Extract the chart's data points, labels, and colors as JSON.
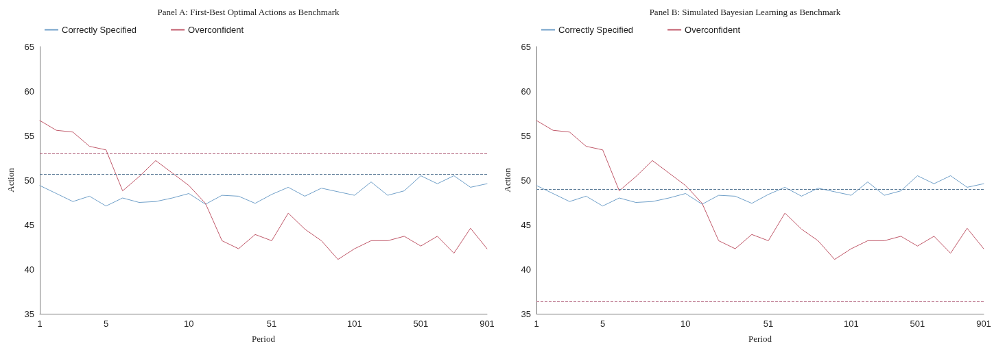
{
  "chart_data": [
    {
      "type": "line",
      "title": "Panel A: First-Best Optimal Actions as Benchmark",
      "xlabel": "Period",
      "ylabel": "Action",
      "categories": [
        "1",
        null,
        null,
        null,
        "5",
        null,
        null,
        null,
        null,
        "10",
        null,
        null,
        null,
        null,
        "51",
        null,
        null,
        null,
        null,
        "101",
        null,
        null,
        null,
        "501",
        null,
        null,
        null,
        "901"
      ],
      "series": [
        {
          "name": "Correctly Specified",
          "color": "#6f9fc8",
          "values": [
            49.4,
            48.5,
            47.6,
            48.2,
            47.1,
            48.0,
            47.5,
            47.6,
            48.0,
            48.5,
            47.3,
            48.3,
            48.2,
            47.4,
            48.4,
            49.2,
            48.2,
            49.1,
            48.7,
            48.3,
            49.8,
            48.3,
            48.8,
            50.5,
            49.6,
            50.5,
            49.2,
            49.6
          ]
        },
        {
          "name": "Overconfident",
          "color": "#c0596a",
          "values": [
            56.7,
            55.6,
            55.4,
            53.8,
            53.4,
            48.8,
            50.4,
            52.2,
            50.8,
            49.4,
            47.4,
            43.2,
            42.3,
            43.9,
            43.2,
            46.3,
            44.5,
            43.2,
            41.1,
            42.3,
            43.2,
            43.2,
            43.7,
            42.6,
            43.7,
            41.8,
            44.6,
            42.3
          ]
        }
      ],
      "ylim": [
        35,
        65
      ],
      "yticks": [
        35,
        40,
        45,
        50,
        55,
        60,
        65
      ],
      "grid": false,
      "legend": "top left",
      "marker": "none",
      "line_style": "solid",
      "ref_lines": [
        {
          "axis": "y",
          "value": 53.0,
          "label": null,
          "color": "#b0607a",
          "line_style": "dashed"
        },
        {
          "axis": "y",
          "value": 50.7,
          "label": null,
          "color": "#5a7a96",
          "line_style": "dashed"
        }
      ]
    },
    {
      "type": "line",
      "title": "Panel B: Simulated Bayesian Learning as Benchmark",
      "xlabel": "Period",
      "ylabel": "Action",
      "categories": [
        "1",
        null,
        null,
        null,
        "5",
        null,
        null,
        null,
        null,
        "10",
        null,
        null,
        null,
        null,
        "51",
        null,
        null,
        null,
        null,
        "101",
        null,
        null,
        null,
        "501",
        null,
        null,
        null,
        "901"
      ],
      "series": [
        {
          "name": "Correctly Specified",
          "color": "#6f9fc8",
          "values": [
            49.4,
            48.5,
            47.6,
            48.2,
            47.1,
            48.0,
            47.5,
            47.6,
            48.0,
            48.5,
            47.3,
            48.3,
            48.2,
            47.4,
            48.4,
            49.2,
            48.2,
            49.1,
            48.7,
            48.3,
            49.8,
            48.3,
            48.8,
            50.5,
            49.6,
            50.5,
            49.2,
            49.6
          ]
        },
        {
          "name": "Overconfident",
          "color": "#c0596a",
          "values": [
            56.7,
            55.6,
            55.4,
            53.8,
            53.4,
            48.8,
            50.4,
            52.2,
            50.8,
            49.4,
            47.4,
            43.2,
            42.3,
            43.9,
            43.2,
            46.3,
            44.5,
            43.2,
            41.1,
            42.3,
            43.2,
            43.2,
            43.7,
            42.6,
            43.7,
            41.8,
            44.6,
            42.3
          ]
        }
      ],
      "ylim": [
        35,
        65
      ],
      "yticks": [
        35,
        40,
        45,
        50,
        55,
        60,
        65
      ],
      "grid": false,
      "legend": "top left",
      "marker": "none",
      "line_style": "solid",
      "ref_lines": [
        {
          "axis": "y",
          "value": 49.0,
          "label": null,
          "color": "#5a7a96",
          "line_style": "dashed"
        },
        {
          "axis": "y",
          "value": 36.4,
          "label": null,
          "color": "#b0607a",
          "line_style": "dashed"
        }
      ]
    }
  ]
}
